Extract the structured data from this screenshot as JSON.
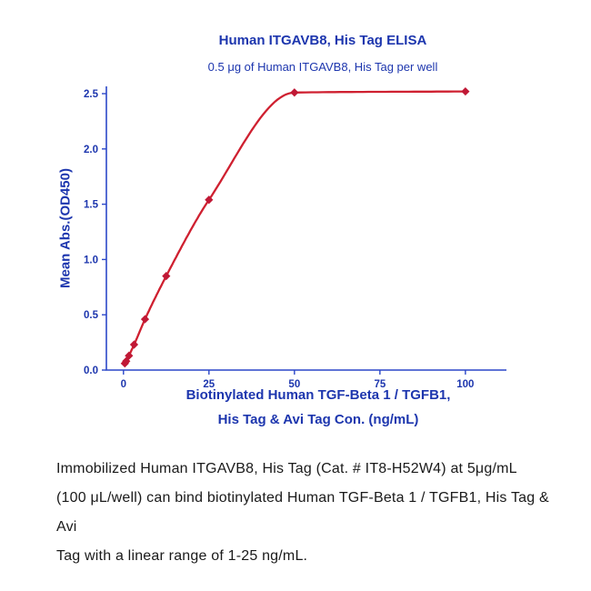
{
  "chart_data": {
    "type": "scatter",
    "title": "Human ITGAVB8, His Tag ELISA",
    "subtitle": "0.5 μg of Human ITGAVB8, His Tag per well",
    "x": [
      0.4,
      0.8,
      1.6,
      3.1,
      6.3,
      12.5,
      25,
      50,
      100
    ],
    "y": [
      0.06,
      0.08,
      0.13,
      0.23,
      0.46,
      0.85,
      1.54,
      2.51,
      2.52
    ],
    "fit": "4-parameter logistic curve through points",
    "xlabel_line1": "Biotinylated Human TGF-Beta 1 / TGFB1,",
    "xlabel_line2": "His Tag & Avi Tag Con. (ng/mL)",
    "ylabel": "Mean Abs.(OD450)",
    "xlim": [
      0,
      105
    ],
    "ylim": [
      0,
      2.6
    ],
    "xticks": [
      0,
      25,
      50,
      75,
      100
    ],
    "yticks": [
      0.0,
      0.5,
      1.0,
      1.5,
      2.0,
      2.5
    ],
    "grid": "off",
    "legend": "none",
    "marker": "diamond",
    "marker_color": "#c01835",
    "line_color": "#cf2030",
    "axis_color": "#2b47c8",
    "label_color": "#1d36ae"
  },
  "caption": {
    "line1": "Immobilized Human ITGAVB8, His Tag (Cat. # IT8-H52W4) at 5μg/mL",
    "line2": "(100 μL/well) can bind biotinylated Human TGF-Beta 1 / TGFB1, His Tag & Avi",
    "line3": "Tag with a linear range of 1-25 ng/mL."
  }
}
